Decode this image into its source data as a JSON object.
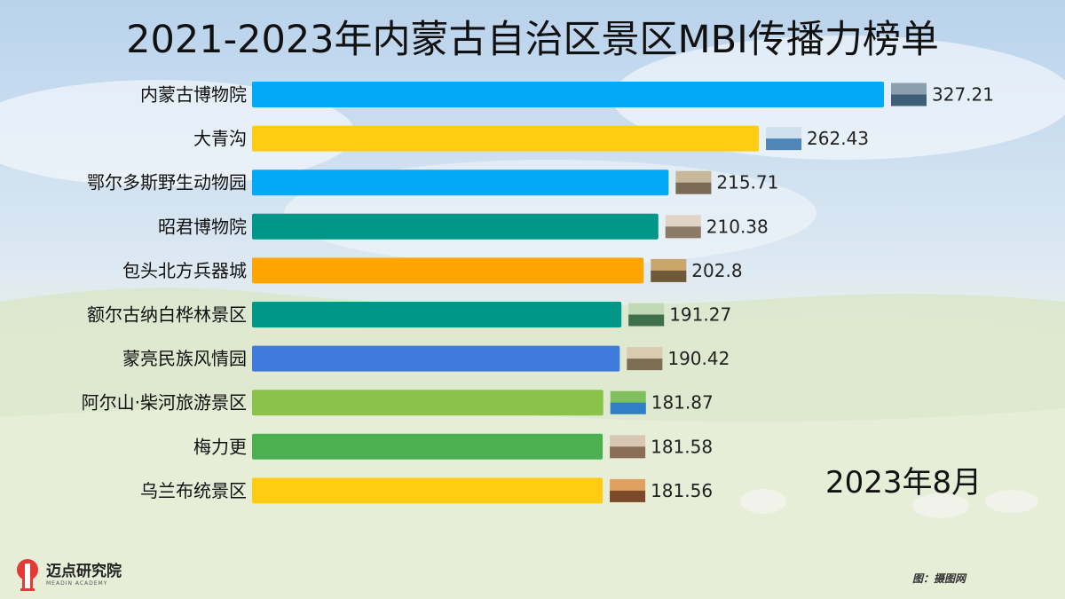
{
  "title": "2021-2023年内蒙古自治区景区MBI传播力榜单",
  "period": "2023年8月",
  "logo": {
    "name_cn": "迈点研究院",
    "name_en": "MEADIN ACADEMY"
  },
  "credit": "图：摄图网",
  "chart_data": {
    "type": "bar",
    "orientation": "horizontal",
    "categories": [
      "内蒙古博物院",
      "大青沟",
      "鄂尔多斯野生动物园",
      "昭君博物院",
      "包头北方兵器城",
      "额尔古纳白桦林景区",
      "蒙亮民族风情园",
      "阿尔山·柴河旅游景区",
      "梅力更",
      "乌兰布统景区"
    ],
    "values": [
      327.21,
      262.43,
      215.71,
      210.38,
      202.8,
      191.27,
      190.42,
      181.87,
      181.58,
      181.56
    ],
    "value_labels": [
      "327.21",
      "262.43",
      "215.71",
      "210.38",
      "202.8",
      "191.27",
      "190.42",
      "181.87",
      "181.58",
      "181.56"
    ],
    "colors": [
      "#03A9F4",
      "#FFCC11",
      "#03A9F4",
      "#009688",
      "#FFA500",
      "#009688",
      "#3F7BDD",
      "#8BC34A",
      "#4CAF50",
      "#FFCC11"
    ],
    "xlim": [
      0,
      380
    ],
    "grid": false,
    "legend": "none"
  }
}
